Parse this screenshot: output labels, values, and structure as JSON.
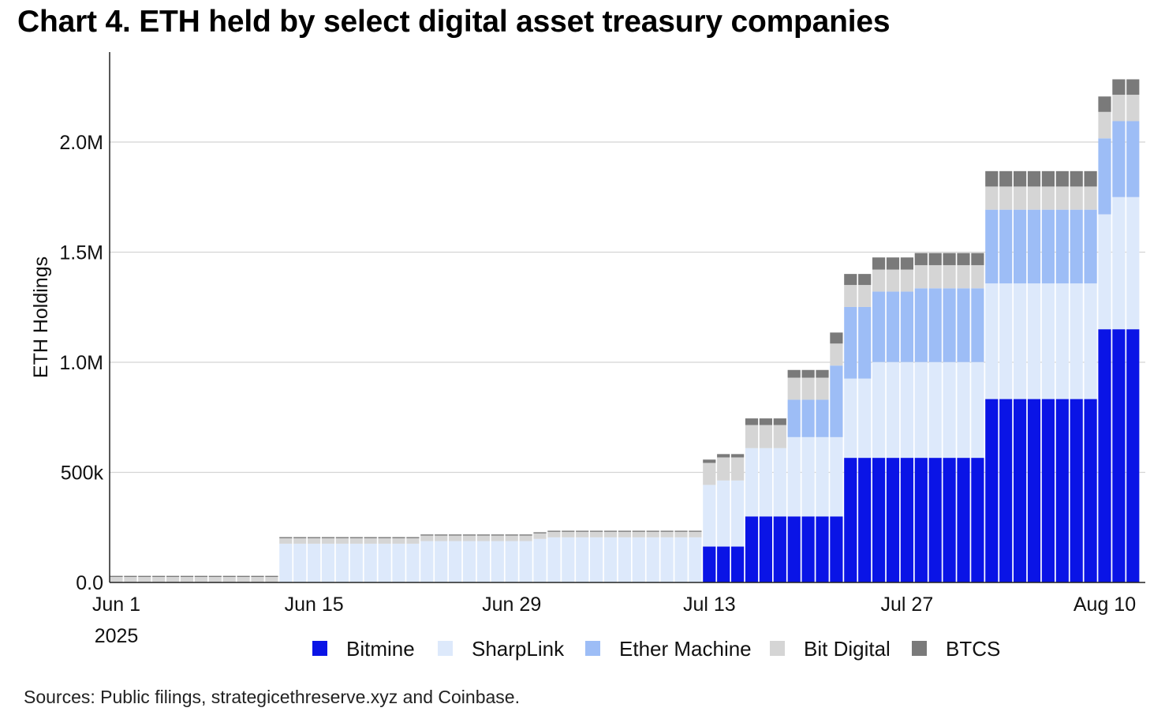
{
  "title": "Chart 4. ETH held by select digital asset treasury companies",
  "source": "Sources: Public filings, strategicethreserve.xyz and Coinbase.",
  "colors": {
    "Bitmine": "#0a14e6",
    "SharpLink": "#dde9fb",
    "Ether Machine": "#9dbdf6",
    "Bit Digital": "#d5d5d5",
    "BTCS": "#7a7a7a"
  },
  "chart_data": {
    "type": "bar",
    "stacked": true,
    "ylabel": "ETH Holdings",
    "ylim": [
      0,
      2300000
    ],
    "yticks": [
      {
        "value": 0,
        "label": "0.0"
      },
      {
        "value": 500000,
        "label": "500k"
      },
      {
        "value": 1000000,
        "label": "1.0M"
      },
      {
        "value": 1500000,
        "label": "1.5M"
      },
      {
        "value": 2000000,
        "label": "2.0M"
      }
    ],
    "xticks": [
      {
        "index": 0,
        "label": "Jun 1",
        "sublabel": "2025"
      },
      {
        "index": 14,
        "label": "Jun 15"
      },
      {
        "index": 28,
        "label": "Jun 29"
      },
      {
        "index": 42,
        "label": "Jul 13"
      },
      {
        "index": 56,
        "label": "Jul 27"
      },
      {
        "index": 70,
        "label": "Aug 10"
      }
    ],
    "grid": true,
    "legend": "bottom",
    "categories": [
      "2025-06-01",
      "2025-06-02",
      "2025-06-03",
      "2025-06-04",
      "2025-06-05",
      "2025-06-06",
      "2025-06-07",
      "2025-06-08",
      "2025-06-09",
      "2025-06-10",
      "2025-06-11",
      "2025-06-12",
      "2025-06-13",
      "2025-06-14",
      "2025-06-15",
      "2025-06-16",
      "2025-06-17",
      "2025-06-18",
      "2025-06-19",
      "2025-06-20",
      "2025-06-21",
      "2025-06-22",
      "2025-06-23",
      "2025-06-24",
      "2025-06-25",
      "2025-06-26",
      "2025-06-27",
      "2025-06-28",
      "2025-06-29",
      "2025-06-30",
      "2025-07-01",
      "2025-07-02",
      "2025-07-03",
      "2025-07-04",
      "2025-07-05",
      "2025-07-06",
      "2025-07-07",
      "2025-07-08",
      "2025-07-09",
      "2025-07-10",
      "2025-07-11",
      "2025-07-12",
      "2025-07-13",
      "2025-07-14",
      "2025-07-15",
      "2025-07-16",
      "2025-07-17",
      "2025-07-18",
      "2025-07-19",
      "2025-07-20",
      "2025-07-21",
      "2025-07-22",
      "2025-07-23",
      "2025-07-24",
      "2025-07-25",
      "2025-07-26",
      "2025-07-27",
      "2025-07-28",
      "2025-07-29",
      "2025-07-30",
      "2025-07-31",
      "2025-08-01",
      "2025-08-02",
      "2025-08-03",
      "2025-08-04",
      "2025-08-05",
      "2025-08-06",
      "2025-08-07",
      "2025-08-08",
      "2025-08-09",
      "2025-08-10",
      "2025-08-11",
      "2025-08-12"
    ],
    "series": [
      {
        "name": "Bitmine",
        "values": [
          0,
          0,
          0,
          0,
          0,
          0,
          0,
          0,
          0,
          0,
          0,
          0,
          0,
          0,
          0,
          0,
          0,
          0,
          0,
          0,
          0,
          0,
          0,
          0,
          0,
          0,
          0,
          0,
          0,
          0,
          0,
          0,
          0,
          0,
          0,
          0,
          0,
          0,
          0,
          0,
          0,
          0,
          163000,
          163000,
          163000,
          300000,
          300000,
          300000,
          300000,
          300000,
          300000,
          300000,
          566000,
          566000,
          566000,
          566000,
          566000,
          566000,
          566000,
          566000,
          566000,
          566000,
          833000,
          833000,
          833000,
          833000,
          833000,
          833000,
          833000,
          833000,
          1150000,
          1150000,
          1150000
        ]
      },
      {
        "name": "SharpLink",
        "values": [
          0,
          0,
          0,
          0,
          0,
          0,
          0,
          0,
          0,
          0,
          0,
          0,
          176000,
          176000,
          176000,
          176000,
          176000,
          176000,
          176000,
          176000,
          176000,
          176000,
          188000,
          188000,
          188000,
          188000,
          188000,
          188000,
          188000,
          188000,
          198000,
          205000,
          205000,
          205000,
          205000,
          205000,
          205000,
          205000,
          205000,
          205000,
          205000,
          205000,
          280000,
          300000,
          300000,
          310000,
          310000,
          310000,
          360000,
          360000,
          360000,
          360000,
          360000,
          360000,
          435000,
          435000,
          435000,
          435000,
          435000,
          435000,
          435000,
          435000,
          525000,
          525000,
          525000,
          525000,
          525000,
          525000,
          525000,
          525000,
          522000,
          600000,
          600000
        ]
      },
      {
        "name": "Ether Machine",
        "values": [
          0,
          0,
          0,
          0,
          0,
          0,
          0,
          0,
          0,
          0,
          0,
          0,
          0,
          0,
          0,
          0,
          0,
          0,
          0,
          0,
          0,
          0,
          0,
          0,
          0,
          0,
          0,
          0,
          0,
          0,
          0,
          0,
          0,
          0,
          0,
          0,
          0,
          0,
          0,
          0,
          0,
          0,
          0,
          0,
          0,
          0,
          0,
          0,
          170000,
          170000,
          170000,
          325000,
          325000,
          325000,
          320000,
          320000,
          320000,
          335000,
          335000,
          335000,
          335000,
          335000,
          335000,
          335000,
          335000,
          335000,
          335000,
          335000,
          335000,
          335000,
          345000,
          345000,
          345000
        ]
      },
      {
        "name": "Bit Digital",
        "values": [
          25000,
          25000,
          25000,
          25000,
          25000,
          25000,
          25000,
          25000,
          25000,
          25000,
          25000,
          25000,
          25000,
          25000,
          25000,
          25000,
          25000,
          25000,
          25000,
          25000,
          25000,
          25000,
          25000,
          25000,
          25000,
          25000,
          25000,
          25000,
          25000,
          25000,
          25000,
          25000,
          25000,
          25000,
          25000,
          25000,
          25000,
          25000,
          25000,
          25000,
          25000,
          25000,
          100000,
          105000,
          105000,
          105000,
          105000,
          105000,
          100000,
          100000,
          100000,
          100000,
          100000,
          100000,
          100000,
          100000,
          100000,
          105000,
          105000,
          105000,
          105000,
          105000,
          105000,
          105000,
          105000,
          105000,
          105000,
          105000,
          105000,
          105000,
          120000,
          120000,
          120000
        ]
      },
      {
        "name": "BTCS",
        "values": [
          5000,
          5000,
          5000,
          5000,
          5000,
          5000,
          5000,
          5000,
          5000,
          5000,
          5000,
          5000,
          5000,
          5000,
          5000,
          5000,
          5000,
          5000,
          5000,
          5000,
          5000,
          5000,
          5000,
          5000,
          5000,
          5000,
          5000,
          5000,
          5000,
          5000,
          5000,
          5000,
          5000,
          5000,
          5000,
          5000,
          5000,
          5000,
          5000,
          5000,
          5000,
          5000,
          15000,
          15000,
          15000,
          30000,
          30000,
          30000,
          35000,
          35000,
          35000,
          50000,
          50000,
          50000,
          55000,
          55000,
          55000,
          55000,
          55000,
          55000,
          55000,
          55000,
          70000,
          70000,
          70000,
          70000,
          70000,
          70000,
          70000,
          70000,
          70000,
          70000,
          70000
        ]
      }
    ]
  }
}
